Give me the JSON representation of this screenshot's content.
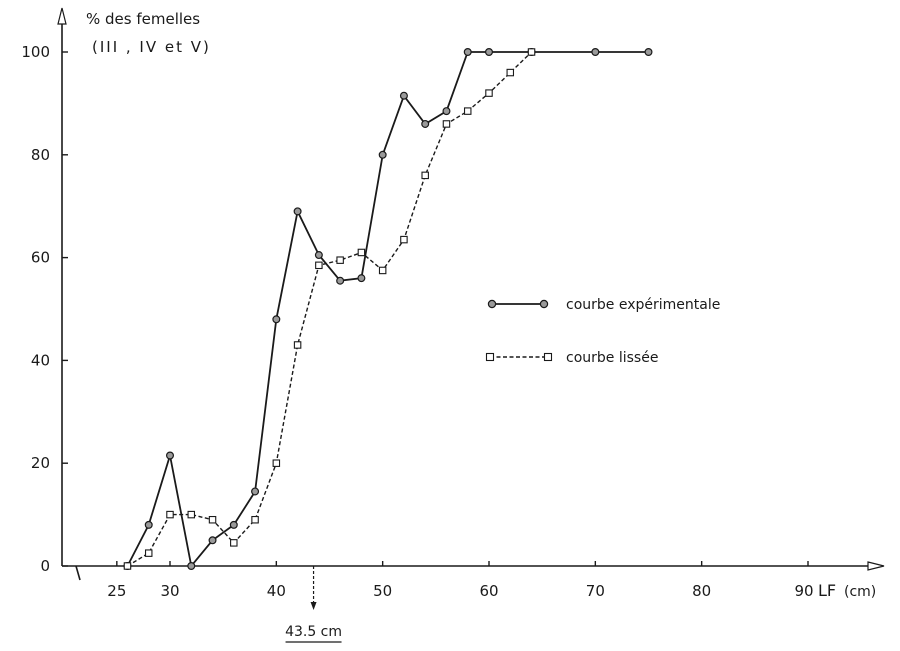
{
  "chart_data": {
    "type": "line",
    "ylabel_line1": "% des femelles",
    "ylabel_line2": "(III , IV et V)",
    "xlabel": "LF",
    "xunit": "(cm)",
    "xlim": [
      20,
      95
    ],
    "ylim": [
      0,
      100
    ],
    "xticks": [
      25,
      30,
      40,
      50,
      60,
      70,
      80,
      90
    ],
    "yticks": [
      0,
      20,
      40,
      60,
      80,
      100
    ],
    "annotation": {
      "text": "43.5 cm",
      "x": 43.5
    },
    "series": [
      {
        "name": "courbe expérimentale",
        "style": "solid-circle",
        "color": "#1a1a1a",
        "x": [
          26,
          28,
          30,
          32,
          34,
          36,
          38,
          40,
          42,
          44,
          46,
          48,
          50,
          52,
          54,
          56,
          58,
          60,
          64,
          70,
          75
        ],
        "y": [
          0,
          8,
          21.5,
          0,
          5,
          8,
          14.5,
          48,
          69,
          60.5,
          55.5,
          56,
          80,
          91.5,
          86,
          88.5,
          100,
          100,
          100,
          100,
          100
        ]
      },
      {
        "name": "courbe lissée",
        "style": "dashed-square",
        "color": "#1a1a1a",
        "x": [
          26,
          28,
          30,
          32,
          34,
          36,
          38,
          40,
          42,
          44,
          46,
          48,
          50,
          52,
          54,
          56,
          58,
          60,
          62,
          64
        ],
        "y": [
          0,
          2.5,
          10,
          10,
          9,
          4.5,
          9,
          20,
          43,
          58.5,
          59.5,
          61,
          57.5,
          63.5,
          76,
          86,
          88.5,
          92,
          96,
          100
        ]
      }
    ],
    "legend": {
      "placement": "right"
    }
  }
}
